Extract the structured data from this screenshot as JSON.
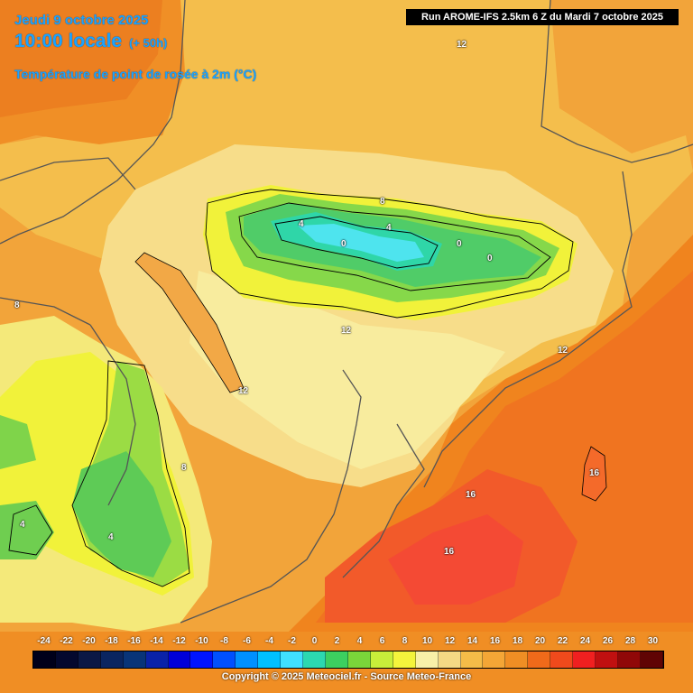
{
  "header": {
    "date": "Jeudi 9 octobre 2025",
    "time": "10:00 locale",
    "offset": "(+ 50h)",
    "parameter": "Température de point de rosée à 2m (°C)",
    "run": "Run AROME-IFS 2.5km 6 Z du Mardi 7 octobre 2025"
  },
  "contour_labels": [
    {
      "id": "label-12-north",
      "text": "12"
    },
    {
      "id": "label-8-alps-north",
      "text": "8"
    },
    {
      "id": "label-4-alps-west",
      "text": "4"
    },
    {
      "id": "label-4-alps-mid",
      "text": "4"
    },
    {
      "id": "label-0-alps-1",
      "text": "0"
    },
    {
      "id": "label-0-alps-2",
      "text": "0"
    },
    {
      "id": "label-0-alps-3",
      "text": "0"
    },
    {
      "id": "label-8-west",
      "text": "8"
    },
    {
      "id": "label-12-center",
      "text": "12"
    },
    {
      "id": "label-12-east",
      "text": "12"
    },
    {
      "id": "label-12-valley",
      "text": "12"
    },
    {
      "id": "label-8-southwest",
      "text": "8"
    },
    {
      "id": "label-4-southwest",
      "text": "4"
    },
    {
      "id": "label-4-far-west",
      "text": "4"
    },
    {
      "id": "label-16-coast",
      "text": "16"
    },
    {
      "id": "label-16-corsica",
      "text": "16"
    },
    {
      "id": "label-16-sea",
      "text": "16"
    }
  ],
  "scale": {
    "labels": [
      "-24",
      "-22",
      "-20",
      "-18",
      "-16",
      "-14",
      "-12",
      "-10",
      "-8",
      "-6",
      "-4",
      "-2",
      "0",
      "2",
      "4",
      "6",
      "8",
      "10",
      "12",
      "14",
      "16",
      "18",
      "20",
      "22",
      "24",
      "26",
      "28",
      "30"
    ],
    "colors": [
      "#00001a",
      "#04082e",
      "#0b1845",
      "#0a2560",
      "#083478",
      "#0a22a8",
      "#0000d8",
      "#0014ff",
      "#0050ff",
      "#0090ff",
      "#00c0ff",
      "#40e0ff",
      "#2cd8b0",
      "#3ccf60",
      "#7ad63a",
      "#c8ee3a",
      "#f4f43c",
      "#f8f0a8",
      "#f4d884",
      "#f4bc48",
      "#f4a636",
      "#f08e24",
      "#f06a1a",
      "#f04a1c",
      "#f02020",
      "#c01010",
      "#900808",
      "#600404"
    ]
  },
  "copyright": "Copyright © 2025 Meteociel.fr - Source Meteo-France"
}
